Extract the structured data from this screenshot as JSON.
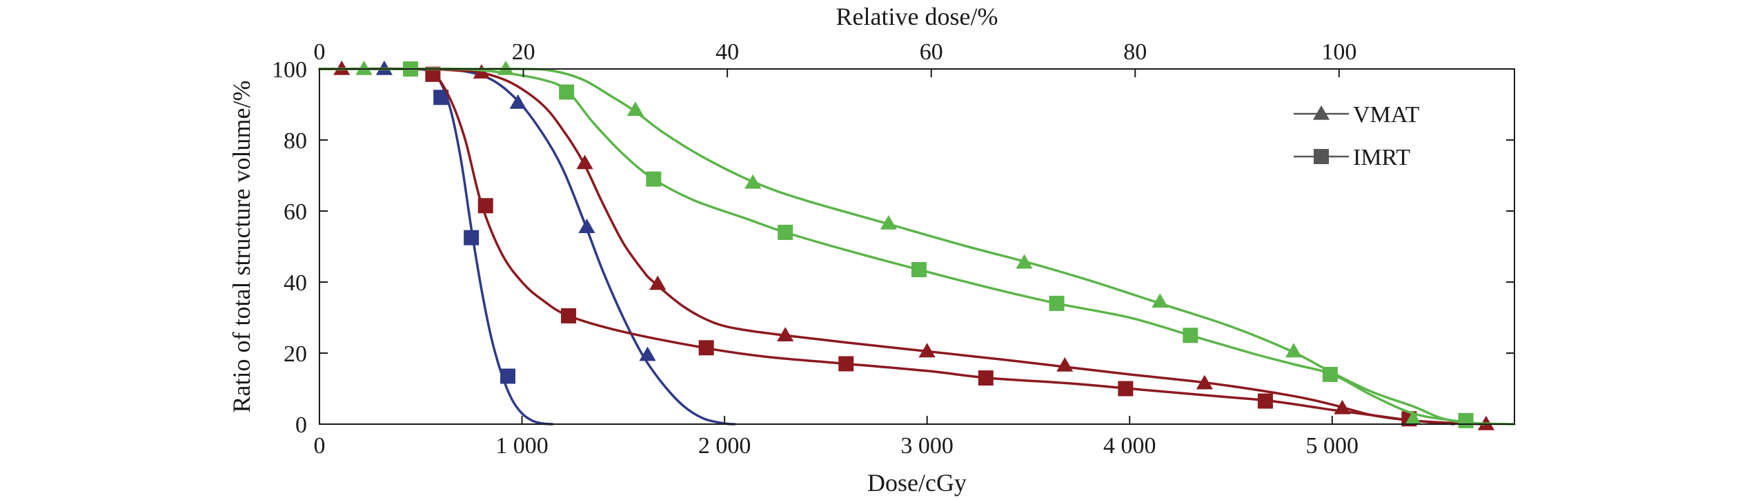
{
  "chart_data": {
    "type": "line",
    "title": "",
    "xlabel": "Dose/cGy",
    "x2label": "Relative dose/%",
    "ylabel": "Ratio of total structure volume/%",
    "xlim": [
      0,
      5900
    ],
    "x2lim": [
      0,
      117.2
    ],
    "ylim": [
      0,
      100
    ],
    "x_ticks": [
      {
        "value": 0,
        "label": "0"
      },
      {
        "value": 1000,
        "label": "1 000"
      },
      {
        "value": 2000,
        "label": "2 000"
      },
      {
        "value": 3000,
        "label": "3 000"
      },
      {
        "value": 4000,
        "label": "4 000"
      },
      {
        "value": 5000,
        "label": "5 000"
      }
    ],
    "x2_ticks": [
      {
        "value": 0,
        "label": "0"
      },
      {
        "value": 20,
        "label": "20"
      },
      {
        "value": 40,
        "label": "40"
      },
      {
        "value": 60,
        "label": "60"
      },
      {
        "value": 80,
        "label": "80"
      },
      {
        "value": 100,
        "label": "100"
      }
    ],
    "y_ticks": [
      {
        "value": 0,
        "label": "0"
      },
      {
        "value": 20,
        "label": "20"
      },
      {
        "value": 40,
        "label": "40"
      },
      {
        "value": 60,
        "label": "60"
      },
      {
        "value": 80,
        "label": "80"
      },
      {
        "value": 100,
        "label": "100"
      }
    ],
    "grid": false,
    "legend": {
      "position": "top-right",
      "entries": [
        {
          "label": "VMAT",
          "marker": "triangle",
          "color": "#555555"
        },
        {
          "label": "IMRT",
          "marker": "square",
          "color": "#555555"
        }
      ]
    },
    "series": [
      {
        "technique": "VMAT",
        "marker": "triangle",
        "color": "#2e3a87",
        "curve": [
          [
            0,
            100
          ],
          [
            300,
            100
          ],
          [
            500,
            100
          ],
          [
            700,
            99.5
          ],
          [
            850,
            97
          ],
          [
            980,
            91
          ],
          [
            1100,
            82
          ],
          [
            1200,
            72
          ],
          [
            1300,
            58
          ],
          [
            1400,
            43
          ],
          [
            1500,
            30
          ],
          [
            1600,
            19
          ],
          [
            1700,
            11
          ],
          [
            1800,
            5
          ],
          [
            1900,
            1.5
          ],
          [
            2000,
            0.2
          ],
          [
            2050,
            0
          ]
        ],
        "markers": [
          [
            320,
            100
          ],
          [
            980,
            90.5
          ],
          [
            1320,
            55.5
          ],
          [
            1620,
            19.5
          ]
        ]
      },
      {
        "technique": "IMRT",
        "marker": "square",
        "color": "#2e3a87",
        "curve": [
          [
            0,
            100
          ],
          [
            450,
            100
          ],
          [
            550,
            99
          ],
          [
            600,
            96
          ],
          [
            650,
            88
          ],
          [
            700,
            74
          ],
          [
            750,
            55
          ],
          [
            800,
            38
          ],
          [
            850,
            24
          ],
          [
            900,
            14
          ],
          [
            950,
            7
          ],
          [
            1000,
            3
          ],
          [
            1050,
            1
          ],
          [
            1100,
            0.2
          ],
          [
            1150,
            0
          ]
        ],
        "markers": [
          [
            600,
            92
          ],
          [
            750,
            52.5
          ],
          [
            930,
            13.5
          ]
        ]
      },
      {
        "technique": "VMAT",
        "marker": "triangle",
        "color": "#8b1a1f",
        "curve": [
          [
            0,
            100
          ],
          [
            500,
            100
          ],
          [
            700,
            99.5
          ],
          [
            800,
            99
          ],
          [
            950,
            96
          ],
          [
            1100,
            90
          ],
          [
            1200,
            83
          ],
          [
            1300,
            74
          ],
          [
            1400,
            62
          ],
          [
            1500,
            51
          ],
          [
            1600,
            43
          ],
          [
            1650,
            40
          ],
          [
            1800,
            33
          ],
          [
            1950,
            28.5
          ],
          [
            2100,
            26.5
          ],
          [
            2300,
            25
          ],
          [
            2600,
            23
          ],
          [
            3000,
            20.5
          ],
          [
            3400,
            18
          ],
          [
            3700,
            16
          ],
          [
            4000,
            14
          ],
          [
            4400,
            11.5
          ],
          [
            4800,
            8
          ],
          [
            5000,
            5.5
          ],
          [
            5200,
            2.5
          ],
          [
            5400,
            1
          ],
          [
            5600,
            0.3
          ],
          [
            5750,
            0
          ]
        ],
        "markers": [
          [
            110,
            100
          ],
          [
            800,
            99
          ],
          [
            1310,
            73.5
          ],
          [
            1670,
            39.5
          ],
          [
            2300,
            25
          ],
          [
            3000,
            20.5
          ],
          [
            3680,
            16.5
          ],
          [
            4370,
            11.5
          ],
          [
            5050,
            4.5
          ],
          [
            5760,
            0
          ]
        ]
      },
      {
        "technique": "IMRT",
        "marker": "square",
        "color": "#8b1a1f",
        "curve": [
          [
            0,
            100
          ],
          [
            500,
            100
          ],
          [
            570,
            98.5
          ],
          [
            650,
            91
          ],
          [
            720,
            80
          ],
          [
            800,
            62
          ],
          [
            900,
            48
          ],
          [
            1000,
            40
          ],
          [
            1100,
            35
          ],
          [
            1230,
            30.5
          ],
          [
            1500,
            26
          ],
          [
            1900,
            21.5
          ],
          [
            2200,
            19
          ],
          [
            2600,
            17
          ],
          [
            3000,
            15
          ],
          [
            3300,
            13
          ],
          [
            3700,
            11.5
          ],
          [
            4000,
            10
          ],
          [
            4400,
            8
          ],
          [
            4700,
            6.5
          ],
          [
            5000,
            4
          ],
          [
            5200,
            2.5
          ],
          [
            5400,
            1
          ],
          [
            5600,
            0
          ]
        ],
        "markers": [
          [
            560,
            98.5
          ],
          [
            820,
            61.5
          ],
          [
            1230,
            30.5
          ],
          [
            1910,
            21.5
          ],
          [
            2600,
            17
          ],
          [
            3290,
            13
          ],
          [
            3980,
            10
          ],
          [
            4670,
            6.5
          ],
          [
            5380,
            1.5
          ]
        ]
      },
      {
        "technique": "VMAT",
        "marker": "triangle",
        "color": "#5cb54a",
        "curve": [
          [
            0,
            100
          ],
          [
            500,
            100
          ],
          [
            800,
            100
          ],
          [
            1000,
            100
          ],
          [
            1150,
            99.5
          ],
          [
            1300,
            97
          ],
          [
            1450,
            92
          ],
          [
            1560,
            88
          ],
          [
            1700,
            82
          ],
          [
            1900,
            75
          ],
          [
            2150,
            68
          ],
          [
            2400,
            63
          ],
          [
            2800,
            56.5
          ],
          [
            3200,
            50
          ],
          [
            3500,
            45.5
          ],
          [
            3800,
            40.5
          ],
          [
            4150,
            34
          ],
          [
            4500,
            27.5
          ],
          [
            4800,
            20.5
          ],
          [
            5000,
            14.5
          ],
          [
            5200,
            9
          ],
          [
            5400,
            5
          ],
          [
            5550,
            1.5
          ],
          [
            5700,
            0.3
          ],
          [
            5900,
            0
          ]
        ],
        "markers": [
          [
            220,
            100
          ],
          [
            920,
            100
          ],
          [
            1560,
            88.5
          ],
          [
            2140,
            68
          ],
          [
            2810,
            56.5
          ],
          [
            3480,
            45.5
          ],
          [
            4150,
            34.5
          ],
          [
            4810,
            20.5
          ],
          [
            5400,
            1.5
          ]
        ]
      },
      {
        "technique": "IMRT",
        "marker": "square",
        "color": "#5cb54a",
        "curve": [
          [
            0,
            100
          ],
          [
            400,
            100
          ],
          [
            700,
            100
          ],
          [
            900,
            99
          ],
          [
            1100,
            97
          ],
          [
            1220,
            94
          ],
          [
            1350,
            85
          ],
          [
            1500,
            76
          ],
          [
            1650,
            69
          ],
          [
            1850,
            63
          ],
          [
            2100,
            58
          ],
          [
            2300,
            54
          ],
          [
            2600,
            49
          ],
          [
            2960,
            43.5
          ],
          [
            3300,
            38.5
          ],
          [
            3640,
            34
          ],
          [
            4000,
            30
          ],
          [
            4300,
            25
          ],
          [
            4600,
            20
          ],
          [
            4800,
            17
          ],
          [
            5000,
            14
          ],
          [
            5200,
            8
          ],
          [
            5400,
            3
          ],
          [
            5600,
            1
          ],
          [
            5750,
            0
          ]
        ],
        "markers": [
          [
            450,
            100
          ],
          [
            1220,
            93.5
          ],
          [
            1650,
            69
          ],
          [
            2300,
            54
          ],
          [
            2960,
            43.5
          ],
          [
            3640,
            34
          ],
          [
            4300,
            25
          ],
          [
            4990,
            14
          ],
          [
            5660,
            1
          ]
        ]
      }
    ]
  }
}
